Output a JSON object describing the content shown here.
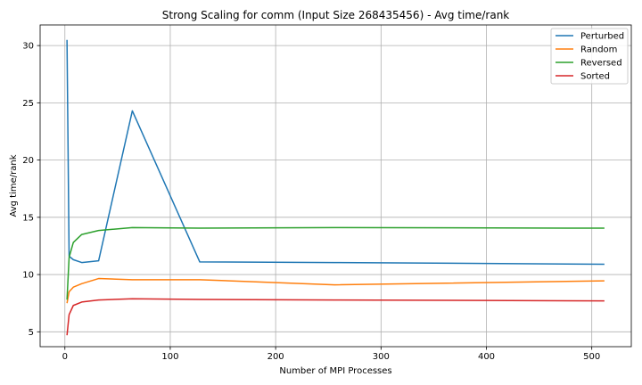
{
  "chart_data": {
    "type": "line",
    "title": "Strong Scaling for comm (Input Size 268435456) - Avg time/rank",
    "xlabel": "Number of MPI Processes",
    "ylabel": "Avg time/rank",
    "xlim": [
      -23.5,
      537.5
    ],
    "ylim": [
      3.7,
      31.8
    ],
    "xticks": [
      0,
      100,
      200,
      300,
      400,
      500
    ],
    "yticks": [
      5,
      10,
      15,
      20,
      25,
      30
    ],
    "grid": true,
    "legend_position": "top-right",
    "x": [
      2,
      4,
      8,
      16,
      32,
      64,
      128,
      256,
      512
    ],
    "series": [
      {
        "name": "Perturbed",
        "color": "#1f77b4",
        "values": [
          30.5,
          11.6,
          11.3,
          11.05,
          11.2,
          24.3,
          11.1,
          11.05,
          10.9
        ]
      },
      {
        "name": "Random",
        "color": "#ff7f0e",
        "values": [
          7.5,
          8.5,
          8.9,
          9.2,
          9.65,
          9.55,
          9.55,
          9.1,
          9.45
        ]
      },
      {
        "name": "Reversed",
        "color": "#2ca02c",
        "values": [
          7.8,
          11.5,
          12.8,
          13.5,
          13.85,
          14.1,
          14.05,
          14.1,
          14.05
        ]
      },
      {
        "name": "Sorted",
        "color": "#d62728",
        "values": [
          4.7,
          6.5,
          7.3,
          7.6,
          7.78,
          7.88,
          7.83,
          7.78,
          7.7
        ]
      }
    ]
  }
}
